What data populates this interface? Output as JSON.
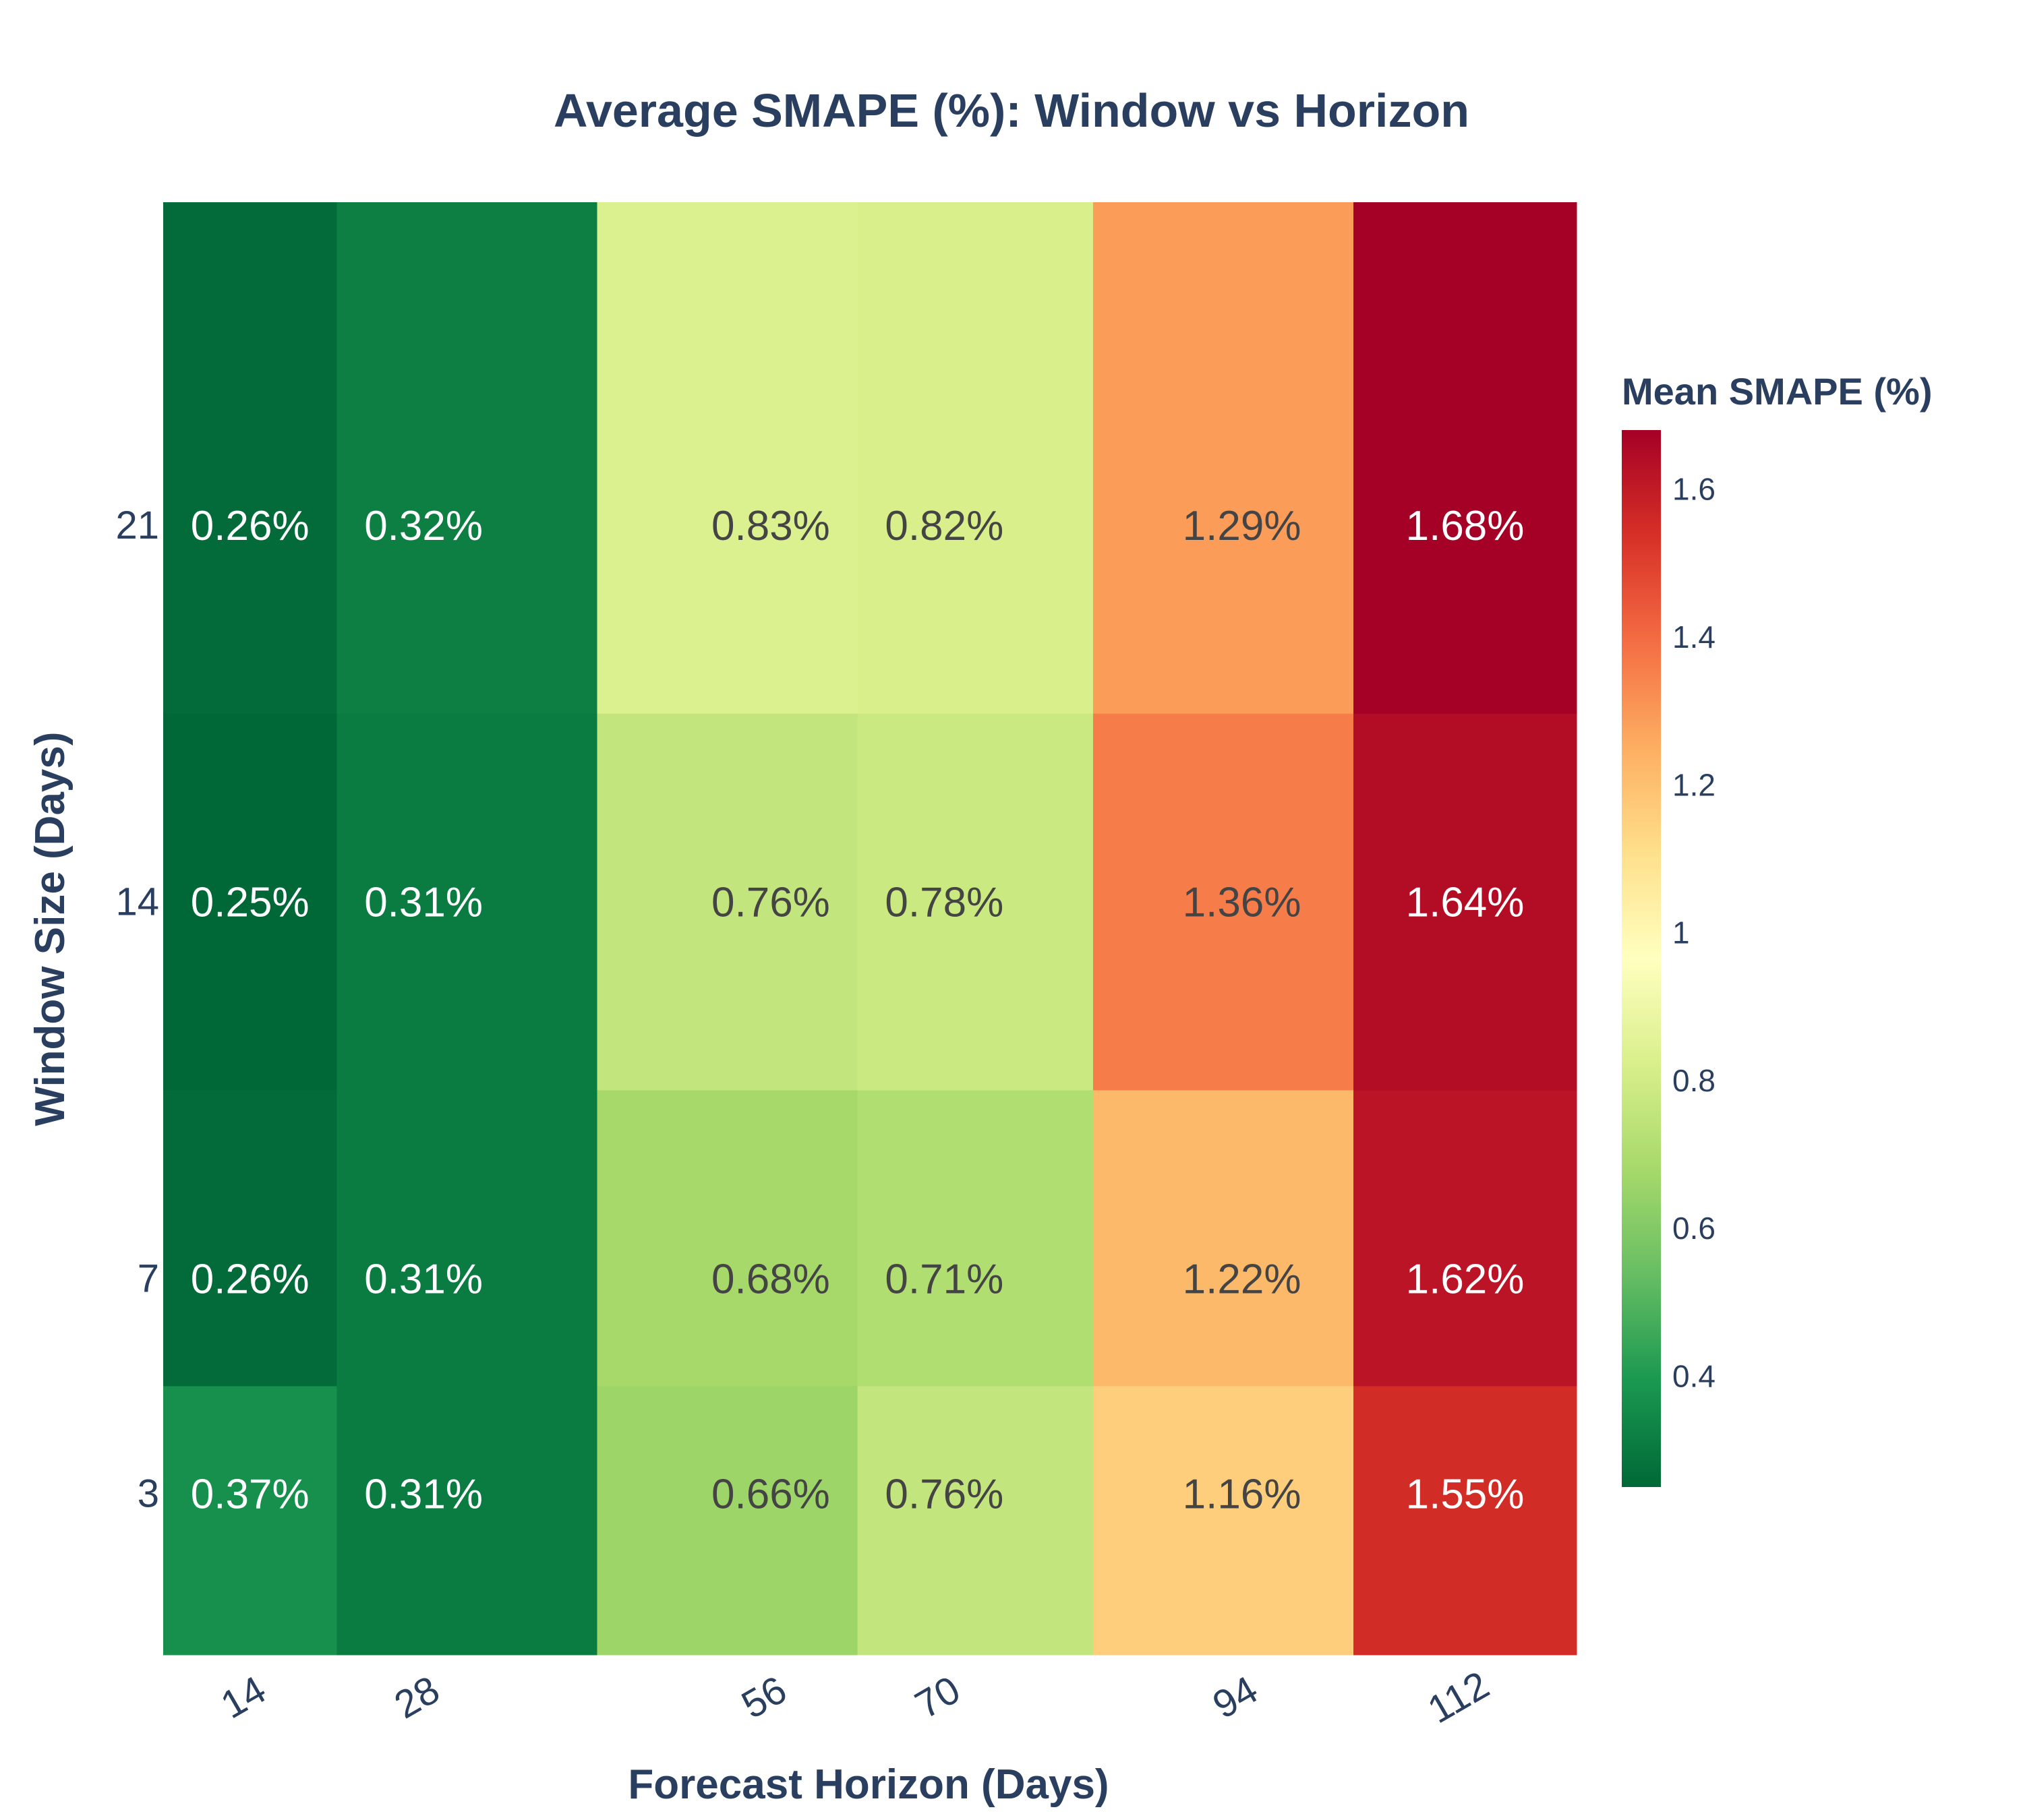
{
  "chart_data": {
    "type": "heatmap",
    "title": "Average SMAPE (%): Window vs Horizon",
    "xlabel": "Forecast Horizon (Days)",
    "ylabel": "Window Size (Days)",
    "x": [
      14,
      28,
      56,
      70,
      94,
      112
    ],
    "y": [
      3,
      7,
      14,
      21
    ],
    "z": [
      [
        0.37,
        0.31,
        0.66,
        0.76,
        1.16,
        1.55
      ],
      [
        0.26,
        0.31,
        0.68,
        0.71,
        1.22,
        1.62
      ],
      [
        0.25,
        0.31,
        0.76,
        0.78,
        1.36,
        1.64
      ],
      [
        0.26,
        0.32,
        0.83,
        0.82,
        1.29,
        1.68
      ]
    ],
    "value_suffix": "%",
    "zrange": [
      0.25,
      1.68
    ],
    "colorscale": "RdYlGn reversed (green = low, red = high)",
    "colorbar": {
      "title": "Mean SMAPE (%)",
      "ticks": [
        0.4,
        0.6,
        0.8,
        1,
        1.2,
        1.4,
        1.6
      ]
    }
  }
}
